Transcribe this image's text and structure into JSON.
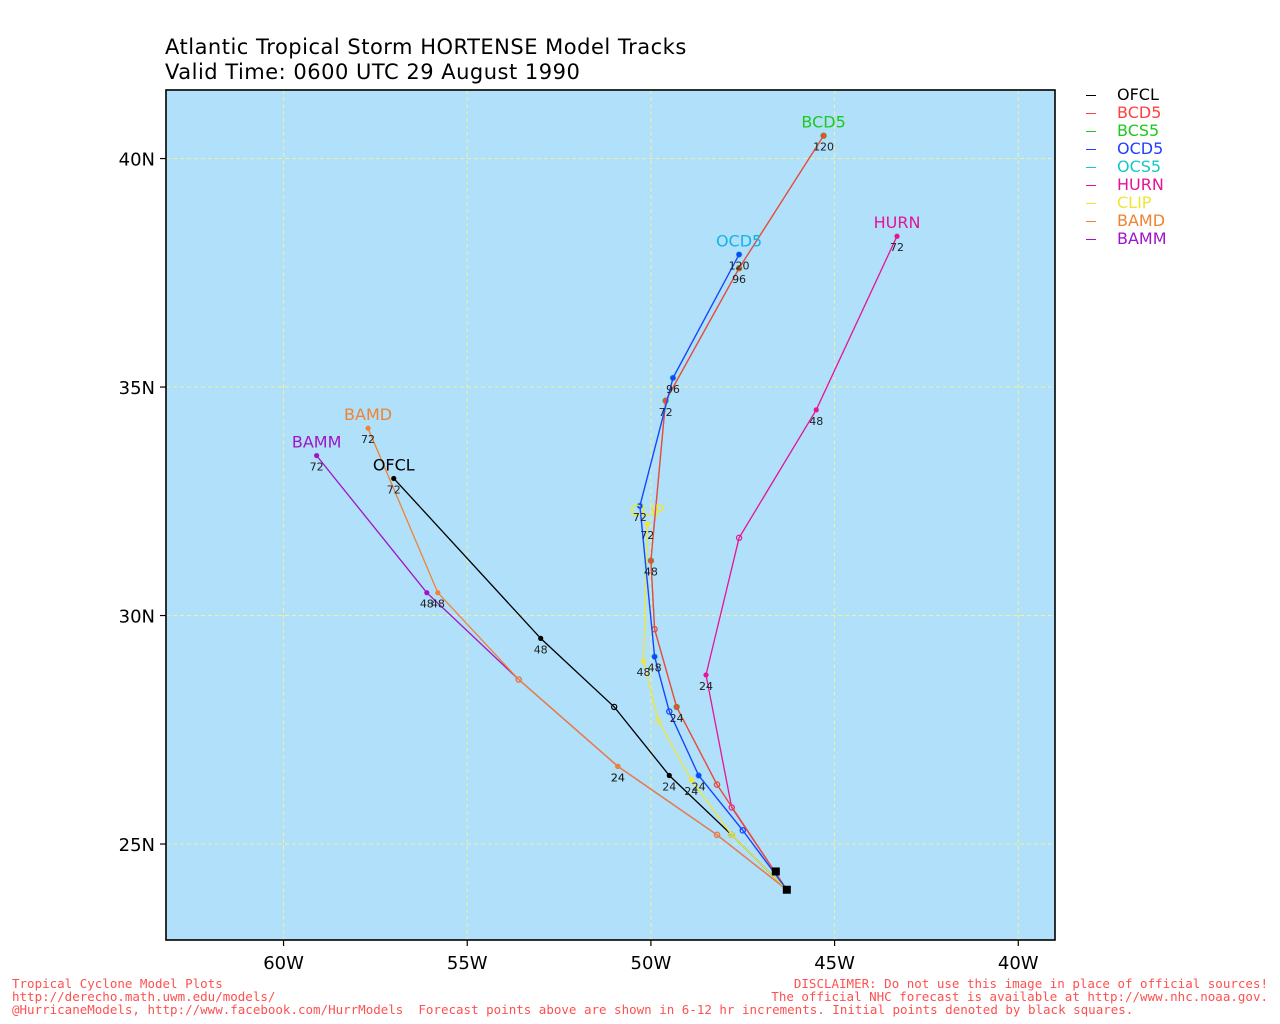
{
  "title": "Atlantic Tropical Storm HORTENSE Model Tracks",
  "subtitle": "Valid Time: 0600 UTC 29 August 1990",
  "footer": {
    "left": [
      "Tropical Cyclone Model Plots",
      "http://derecho.math.uwm.edu/models/",
      "@HurricaneModels, http://www.facebook.com/HurrModels  Forecast points above are shown in 6-12 hr increments. Initial points denoted by black squares."
    ],
    "right": [
      "DISCLAIMER: Do not use this image in place of official sources!",
      "The official NHC forecast is available at http://www.nhc.noaa.gov."
    ]
  },
  "colors": {
    "ocean": "#b0e0fa",
    "grid": "#f0f0a0",
    "footer": "#ff5050"
  },
  "chart_data": {
    "type": "line",
    "title": "Atlantic Tropical Storm HORTENSE Model Tracks",
    "subtitle": "Valid Time: 0600 UTC 29 August 1990",
    "xlabel": "",
    "ylabel": "",
    "xlim": [
      -63.2,
      -39.0
    ],
    "ylim": [
      22.9,
      41.5
    ],
    "xticks": [
      -60,
      -55,
      -50,
      -45,
      -40
    ],
    "xtick_labels": [
      "60W",
      "55W",
      "50W",
      "45W",
      "40W"
    ],
    "yticks": [
      25,
      30,
      35,
      40
    ],
    "ytick_labels": [
      "25N",
      "30N",
      "35N",
      "40N"
    ],
    "grid": true,
    "legend_position": "right, outside plot",
    "initial_points": [
      [
        -46.3,
        24.0
      ],
      [
        -46.6,
        24.4
      ]
    ],
    "series": [
      {
        "name": "OFCL",
        "color": "#000000",
        "label_color": "#000000",
        "track_label": "OFCL",
        "points": [
          {
            "lon": -46.3,
            "lat": 24.0
          },
          {
            "lon": -47.8,
            "lat": 25.2
          },
          {
            "lon": -49.5,
            "lat": 26.5,
            "hr": "24"
          },
          {
            "lon": -51.0,
            "lat": 28.0
          },
          {
            "lon": -53.0,
            "lat": 29.5,
            "hr": "48"
          },
          {
            "lon": -57.0,
            "lat": 33.0,
            "hr": "72"
          }
        ]
      },
      {
        "name": "BCD5",
        "color": "#ff4040",
        "label_color": "#1ec81e",
        "track_label": "BCD5",
        "points": [
          {
            "lon": -46.3,
            "lat": 24.0
          },
          {
            "lon": -48.2,
            "lat": 26.3
          },
          {
            "lon": -49.3,
            "lat": 28.0,
            "hr": "24"
          },
          {
            "lon": -49.9,
            "lat": 29.7
          },
          {
            "lon": -50.0,
            "lat": 31.2,
            "hr": "48"
          },
          {
            "lon": -49.6,
            "lat": 34.7,
            "hr": "72"
          },
          {
            "lon": -47.6,
            "lat": 37.6,
            "hr": "96"
          },
          {
            "lon": -45.3,
            "lat": 40.5,
            "hr": "120"
          }
        ]
      },
      {
        "name": "BCS5",
        "color": "#1ec81e",
        "label_color": "#1ec81e",
        "track_label": "",
        "points": [
          {
            "lon": -46.3,
            "lat": 24.0
          },
          {
            "lon": -48.2,
            "lat": 26.3
          },
          {
            "lon": -49.3,
            "lat": 28.0
          },
          {
            "lon": -49.9,
            "lat": 29.7
          },
          {
            "lon": -50.0,
            "lat": 31.2
          },
          {
            "lon": -49.6,
            "lat": 34.7
          },
          {
            "lon": -47.6,
            "lat": 37.6
          },
          {
            "lon": -45.3,
            "lat": 40.5
          }
        ]
      },
      {
        "name": "OCD5",
        "color": "#2040ff",
        "label_color": "#14b4e6",
        "track_label": "OCD5",
        "points": [
          {
            "lon": -46.3,
            "lat": 24.0
          },
          {
            "lon": -47.5,
            "lat": 25.3
          },
          {
            "lon": -48.7,
            "lat": 26.5,
            "hr": "24"
          },
          {
            "lon": -49.5,
            "lat": 27.9
          },
          {
            "lon": -49.9,
            "lat": 29.1,
            "hr": "48"
          },
          {
            "lon": -50.3,
            "lat": 32.4,
            "hr": "72"
          },
          {
            "lon": -49.4,
            "lat": 35.2,
            "hr": "96"
          },
          {
            "lon": -47.6,
            "lat": 37.9,
            "hr": "120"
          }
        ]
      },
      {
        "name": "OCS5",
        "color": "#14c8c8",
        "label_color": "#14b4e6",
        "track_label": "",
        "points": [
          {
            "lon": -46.3,
            "lat": 24.0
          },
          {
            "lon": -47.5,
            "lat": 25.3
          },
          {
            "lon": -48.7,
            "lat": 26.5
          },
          {
            "lon": -49.5,
            "lat": 27.9
          },
          {
            "lon": -49.9,
            "lat": 29.1
          },
          {
            "lon": -50.3,
            "lat": 32.4
          },
          {
            "lon": -49.4,
            "lat": 35.2
          },
          {
            "lon": -47.6,
            "lat": 37.9
          }
        ]
      },
      {
        "name": "HURN",
        "color": "#e61496",
        "label_color": "#e61496",
        "track_label": "HURN",
        "points": [
          {
            "lon": -46.3,
            "lat": 24.0
          },
          {
            "lon": -47.8,
            "lat": 25.8
          },
          {
            "lon": -48.5,
            "lat": 28.7,
            "hr": "24"
          },
          {
            "lon": -47.6,
            "lat": 31.7
          },
          {
            "lon": -45.5,
            "lat": 34.5,
            "hr": "48"
          },
          {
            "lon": -43.3,
            "lat": 38.3,
            "hr": "72"
          }
        ]
      },
      {
        "name": "CLIP",
        "color": "#f0e632",
        "label_color": "#f0e632",
        "track_label": "CLIP",
        "points": [
          {
            "lon": -46.3,
            "lat": 24.0
          },
          {
            "lon": -47.8,
            "lat": 25.2
          },
          {
            "lon": -48.9,
            "lat": 26.4,
            "hr": "24"
          },
          {
            "lon": -49.8,
            "lat": 27.7
          },
          {
            "lon": -50.2,
            "lat": 29.0,
            "hr": "48"
          },
          {
            "lon": -50.1,
            "lat": 32.0,
            "hr": "72"
          }
        ]
      },
      {
        "name": "BAMD",
        "color": "#f08232",
        "label_color": "#f08232",
        "track_label": "BAMD",
        "points": [
          {
            "lon": -46.3,
            "lat": 24.0
          },
          {
            "lon": -48.2,
            "lat": 25.2
          },
          {
            "lon": -50.9,
            "lat": 26.7,
            "hr": "24"
          },
          {
            "lon": -53.6,
            "lat": 28.6
          },
          {
            "lon": -55.8,
            "lat": 30.5,
            "hr": "48"
          },
          {
            "lon": -57.7,
            "lat": 34.1,
            "hr": "72"
          }
        ]
      },
      {
        "name": "BAMM",
        "color": "#a014c8",
        "label_color": "#a014c8",
        "track_label": "BAMM",
        "points": [
          {
            "lon": -46.3,
            "lat": 24.0
          },
          {
            "lon": -48.2,
            "lat": 25.2
          },
          {
            "lon": -50.9,
            "lat": 26.7,
            "hr": "24"
          },
          {
            "lon": -53.6,
            "lat": 28.6
          },
          {
            "lon": -56.1,
            "lat": 30.5,
            "hr": "48"
          },
          {
            "lon": -59.1,
            "lat": 33.5,
            "hr": "72"
          }
        ]
      }
    ]
  }
}
